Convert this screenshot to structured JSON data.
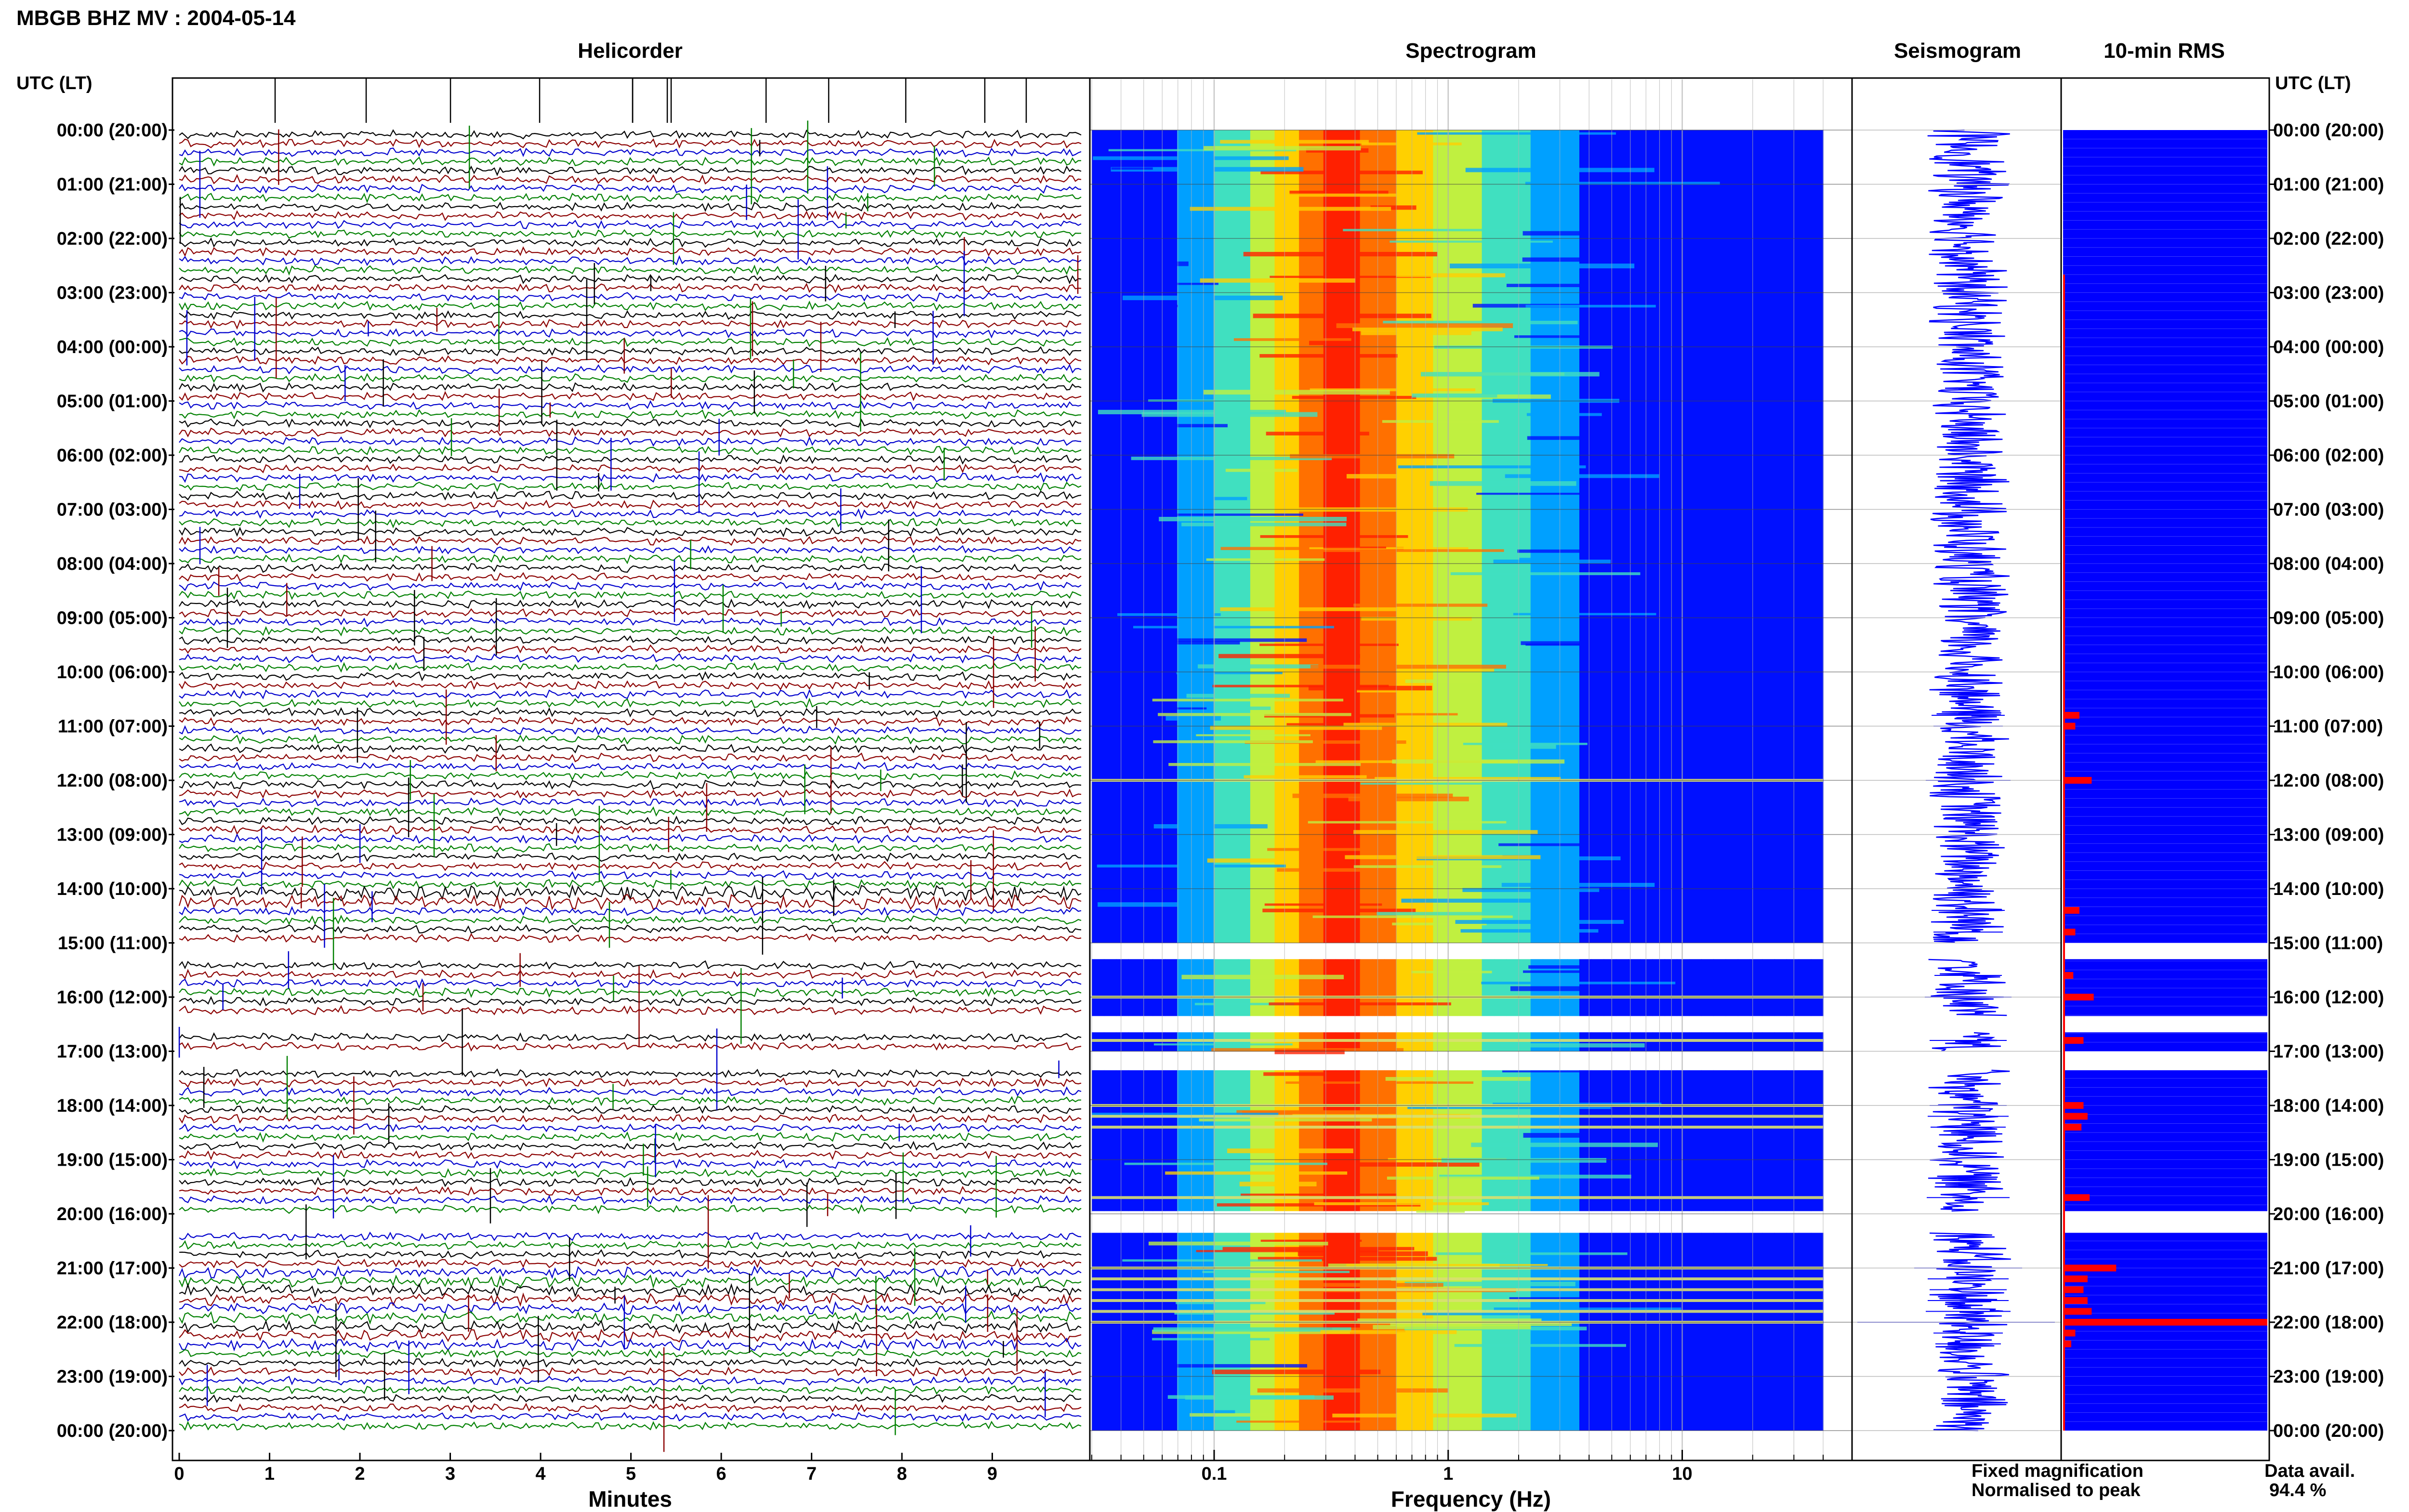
{
  "title": "MBGB BHZ MV : 2004-05-14",
  "panels": {
    "helicorder": "Helicorder",
    "spectrogram": "Spectrogram",
    "seismogram": "Seismogram",
    "rms": "10-min RMS"
  },
  "axis_time_label": "UTC (LT)",
  "hour_labels": [
    "00:00 (20:00)",
    "01:00 (21:00)",
    "02:00 (22:00)",
    "03:00 (23:00)",
    "04:00 (00:00)",
    "05:00 (01:00)",
    "06:00 (02:00)",
    "07:00 (03:00)",
    "08:00 (04:00)",
    "09:00 (05:00)",
    "10:00 (06:00)",
    "11:00 (07:00)",
    "12:00 (08:00)",
    "13:00 (09:00)",
    "14:00 (10:00)",
    "15:00 (11:00)",
    "16:00 (12:00)",
    "17:00 (13:00)",
    "18:00 (14:00)",
    "19:00 (15:00)",
    "20:00 (16:00)",
    "21:00 (17:00)",
    "22:00 (18:00)",
    "23:00 (19:00)",
    "00:00 (20:00)"
  ],
  "helicorder_xlabel": "Minutes",
  "helicorder_ticks": [
    "0",
    "1",
    "2",
    "3",
    "4",
    "5",
    "6",
    "7",
    "8",
    "9"
  ],
  "spectrogram_xlabel": "Frequency (Hz)",
  "spectrogram_ticks": [
    "0.1",
    "1",
    "10"
  ],
  "legend": {
    "fixed": "Fixed magnification",
    "normalised": "Normalised to peak",
    "fixed_color": "#0000ff",
    "normalised_color": "#ff0000"
  },
  "data_avail_label": "Data avail.",
  "data_avail_value": "94.4 %",
  "colors": {
    "trace_cycle": [
      "#000000",
      "#8b0000",
      "#0000cd",
      "#008000"
    ],
    "rms_bg": "#0000ff",
    "rms_bar": "#ff0000",
    "gap": "#ffffff"
  },
  "chart_data": {
    "type": "heatmap",
    "x_minutes_range": [
      0,
      10
    ],
    "freq_range_hz": [
      0.03,
      40
    ],
    "freq_scale": "log",
    "peak_band_hz": [
      0.2,
      0.5
    ],
    "hours_range": [
      0,
      24
    ],
    "data_gaps_hours": [
      [
        15.0,
        15.3
      ],
      [
        16.35,
        16.65
      ],
      [
        17.0,
        17.35
      ],
      [
        19.95,
        20.35
      ]
    ],
    "rms_spikes": [
      {
        "hour": 10.8,
        "value": 0.08
      },
      {
        "hour": 11.0,
        "value": 0.06
      },
      {
        "hour": 12.0,
        "value": 0.14
      },
      {
        "hour": 14.4,
        "value": 0.08
      },
      {
        "hour": 14.8,
        "value": 0.06
      },
      {
        "hour": 15.6,
        "value": 0.05
      },
      {
        "hour": 16.0,
        "value": 0.15
      },
      {
        "hour": 16.8,
        "value": 0.1
      },
      {
        "hour": 18.0,
        "value": 0.1
      },
      {
        "hour": 18.2,
        "value": 0.12
      },
      {
        "hour": 18.4,
        "value": 0.09
      },
      {
        "hour": 19.7,
        "value": 0.13
      },
      {
        "hour": 21.0,
        "value": 0.26
      },
      {
        "hour": 21.2,
        "value": 0.12
      },
      {
        "hour": 21.4,
        "value": 0.1
      },
      {
        "hour": 21.6,
        "value": 0.12
      },
      {
        "hour": 21.8,
        "value": 0.14
      },
      {
        "hour": 22.0,
        "value": 1.0
      },
      {
        "hour": 22.2,
        "value": 0.06
      },
      {
        "hour": 22.4,
        "value": 0.04
      }
    ],
    "data_availability_percent": 94.4
  }
}
